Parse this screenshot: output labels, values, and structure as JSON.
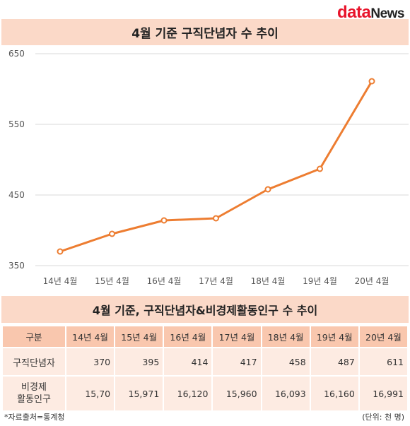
{
  "brand": {
    "part1": "data",
    "part2": "News"
  },
  "chart_title": "4월 기준 구직단념자 수 추이",
  "chart_data": {
    "type": "line",
    "categories": [
      "14년 4월",
      "15년 4월",
      "16년 4월",
      "17년 4월",
      "18년 4월",
      "19년 4월",
      "20년 4월"
    ],
    "values": [
      370,
      395,
      414,
      417,
      458,
      487,
      611
    ],
    "ylim": [
      350,
      650
    ],
    "yticks": [
      350,
      450,
      550,
      650
    ],
    "grid": true,
    "line_color": "#ed7d31"
  },
  "table": {
    "title": "4월 기준, 구직단념자&비경제활동인구 수 추이",
    "header": [
      "구분",
      "14년 4월",
      "15년 4월",
      "16년 4월",
      "17년 4월",
      "18년 4월",
      "19년 4월",
      "20년 4월"
    ],
    "rows": [
      {
        "label": "구직단념자",
        "values": [
          "370",
          "395",
          "414",
          "417",
          "458",
          "487",
          "611"
        ]
      },
      {
        "label_line1": "비경제",
        "label_line2": "활동인구",
        "values": [
          "15,70",
          "15,971",
          "16,120",
          "15,960",
          "16,093",
          "16,160",
          "16,991"
        ]
      }
    ]
  },
  "source_note": "*자료출처=통계청",
  "unit_note": "(단위: 천 명)",
  "colors": {
    "header_band": "#fbd9c8",
    "table_header": "#f9c7ae",
    "table_cell": "#fdebe2",
    "line": "#ed7d31"
  }
}
